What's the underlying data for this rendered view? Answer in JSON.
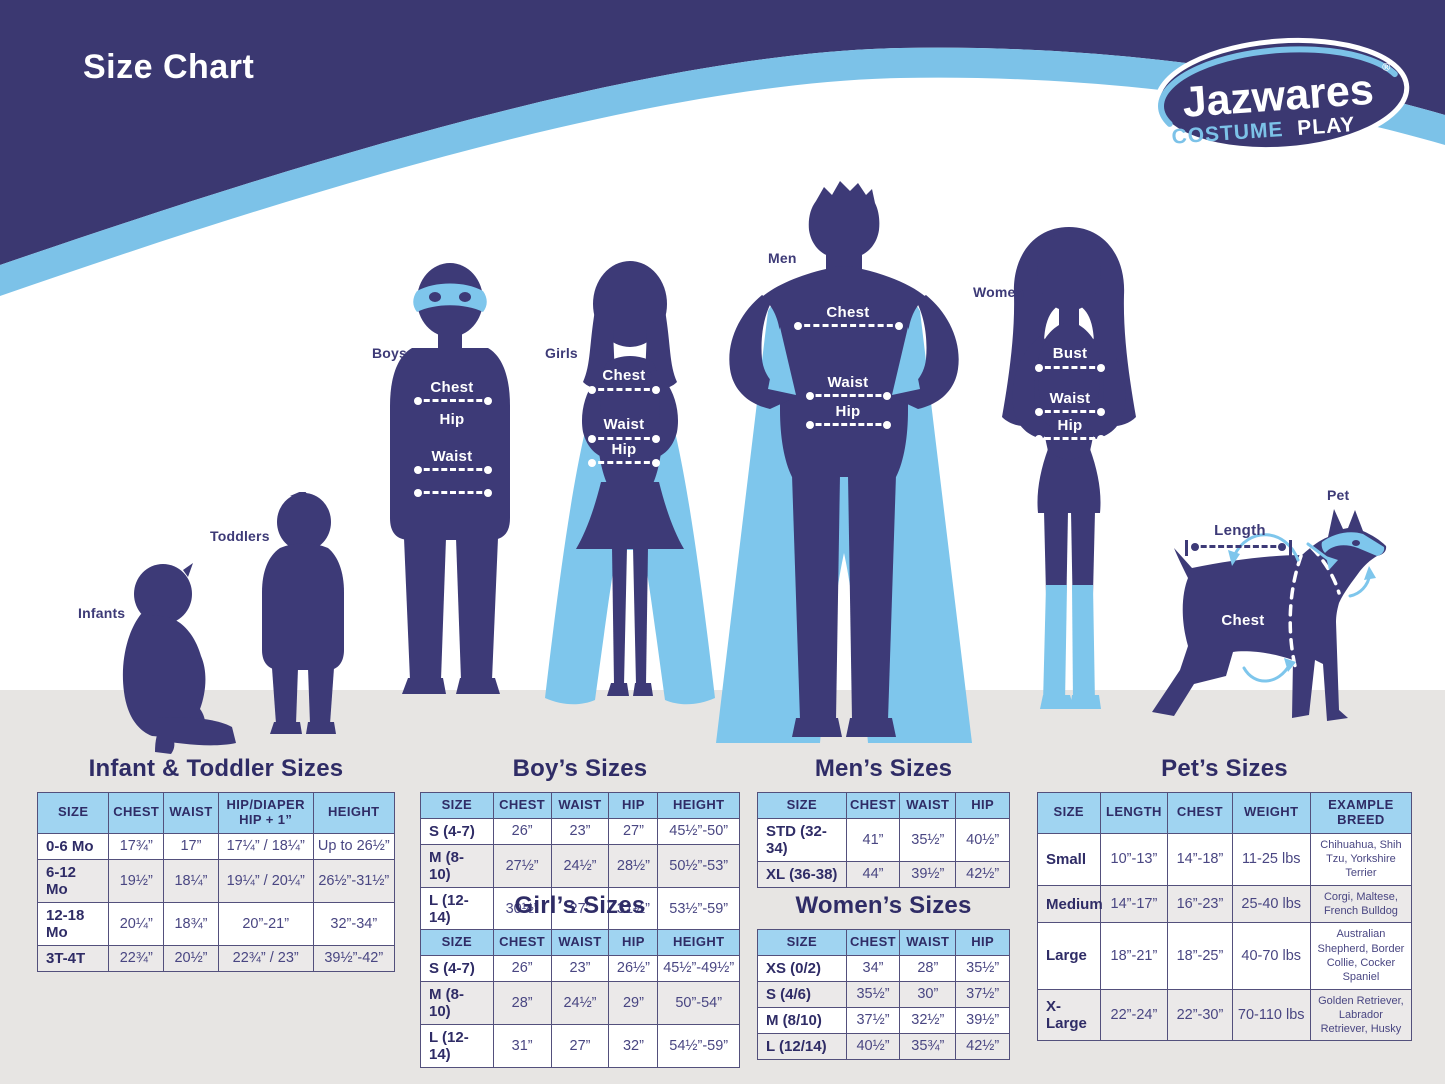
{
  "header": {
    "title": "Size Chart",
    "logo": {
      "brand": "Jazwares",
      "reg": "®",
      "sub_costume": "COSTUME",
      "sub_play": "PLAY"
    }
  },
  "figures": {
    "infants": {
      "label": "Infants"
    },
    "toddlers": {
      "label": "Toddlers"
    },
    "boys": {
      "label": "Boys",
      "measures": {
        "chest": "Chest",
        "hip": "Hip",
        "waist": "Waist"
      }
    },
    "girls": {
      "label": "Girls",
      "measures": {
        "chest": "Chest",
        "waist": "Waist",
        "hip": "Hip"
      }
    },
    "men": {
      "label": "Men",
      "measures": {
        "chest": "Chest",
        "waist": "Waist",
        "hip": "Hip"
      }
    },
    "women": {
      "label": "Women",
      "measures": {
        "bust": "Bust",
        "waist": "Waist",
        "hip": "Hip"
      }
    },
    "pet": {
      "label": "Pet",
      "measures": {
        "length": "Length",
        "chest": "Chest"
      }
    }
  },
  "tables": {
    "infant_toddler": {
      "title": "Infant & Toddler Sizes",
      "headers": [
        "SIZE",
        "CHEST",
        "WAIST",
        "HIP/DIAPER HIP + 1”",
        "HEIGHT"
      ],
      "rows": [
        [
          "0-6 Mo",
          "17¾”",
          "17”",
          "17¼” / 18¼”",
          "Up to 26½”"
        ],
        [
          "6-12 Mo",
          "19½”",
          "18¼”",
          "19¼” / 20¼”",
          "26½”-31½”"
        ],
        [
          "12-18 Mo",
          "20¼”",
          "18¾”",
          "20”-21”",
          "32”-34”"
        ],
        [
          "3T-4T",
          "22¾”",
          "20½”",
          "22¾” / 23”",
          "39½”-42”"
        ]
      ]
    },
    "boys": {
      "title": "Boy’s Sizes",
      "headers": [
        "SIZE",
        "CHEST",
        "WAIST",
        "HIP",
        "HEIGHT"
      ],
      "rows": [
        [
          "S (4-7)",
          "26”",
          "23”",
          "27”",
          "45½”-50”"
        ],
        [
          "M (8-10)",
          "27½”",
          "24½”",
          "28½”",
          "50½”-53”"
        ],
        [
          "L (12-14)",
          "30½”",
          "27”",
          "31½”",
          "53½”-59”"
        ]
      ]
    },
    "girls": {
      "title": "Girl’s Sizes",
      "headers": [
        "SIZE",
        "CHEST",
        "WAIST",
        "HIP",
        "HEIGHT"
      ],
      "rows": [
        [
          "S (4-7)",
          "26”",
          "23”",
          "26½”",
          "45½”-49½”"
        ],
        [
          "M (8-10)",
          "28”",
          "24½”",
          "29”",
          "50”-54”"
        ],
        [
          "L (12-14)",
          "31”",
          "27”",
          "32”",
          "54½”-59”"
        ]
      ]
    },
    "mens": {
      "title": "Men’s Sizes",
      "headers": [
        "SIZE",
        "CHEST",
        "WAIST",
        "HIP"
      ],
      "rows": [
        [
          "STD (32-34)",
          "41”",
          "35½”",
          "40½”"
        ],
        [
          "XL (36-38)",
          "44”",
          "39½”",
          "42½”"
        ]
      ]
    },
    "womens": {
      "title": "Women’s Sizes",
      "headers": [
        "SIZE",
        "CHEST",
        "WAIST",
        "HIP"
      ],
      "rows": [
        [
          "XS (0/2)",
          "34”",
          "28”",
          "35½”"
        ],
        [
          "S (4/6)",
          "35½”",
          "30”",
          "37½”"
        ],
        [
          "M (8/10)",
          "37½”",
          "32½”",
          "39½”"
        ],
        [
          "L (12/14)",
          "40½”",
          "35¾”",
          "42½”"
        ]
      ]
    },
    "pets": {
      "title": "Pet’s Sizes",
      "headers": [
        "SIZE",
        "LENGTH",
        "CHEST",
        "WEIGHT",
        "EXAMPLE BREED"
      ],
      "rows": [
        [
          "Small",
          "10”-13”",
          "14”-18”",
          "11-25 lbs",
          "Chihuahua, Shih Tzu, Yorkshire Terrier"
        ],
        [
          "Medium",
          "14”-17”",
          "16”-23”",
          "25-40 lbs",
          "Corgi, Maltese, French Bulldog"
        ],
        [
          "Large",
          "18”-21”",
          "18”-25”",
          "40-70 lbs",
          "Australian Shepherd, Border Collie, Cocker Spaniel"
        ],
        [
          "X-Large",
          "22”-24”",
          "22”-30”",
          "70-110 lbs",
          "Golden Retriever, Labrador Retriever, Husky"
        ]
      ]
    }
  },
  "colors": {
    "band_navy": "#3b3871",
    "figure_navy": "#3d3a77",
    "light_blue": "#7ec6ec",
    "stripe_blue": "#7cc2e8",
    "thead_blue": "#a0d4f1",
    "gray_band": "#e7e5e3",
    "row_gray": "#ebe9e9",
    "border": "#53507c",
    "text_navy": "#2f2c66",
    "value_text": "#494682"
  }
}
